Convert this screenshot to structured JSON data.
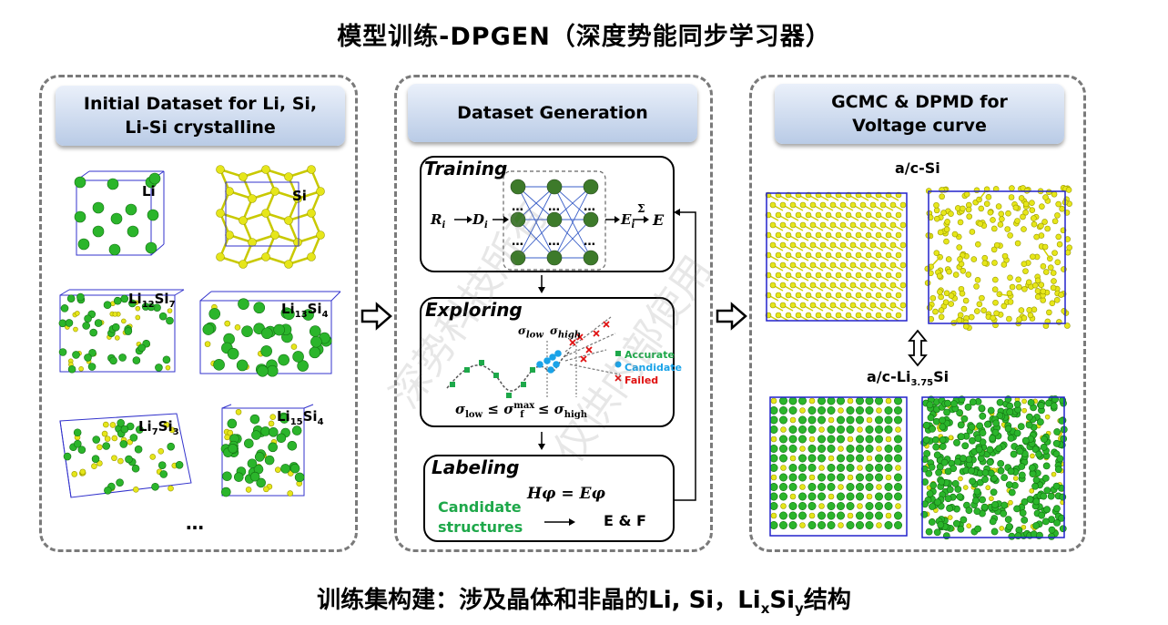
{
  "title": "模型训练-DPGEN（深度势能同步学习器）",
  "bottom_caption": {
    "prefix": "训练集构建：涉及晶体和非晶的Li, Si，Li",
    "sub_x": "x",
    "mid": "Si",
    "sub_y": "y",
    "suffix": "结构"
  },
  "panel1": {
    "header_line1": "Initial Dataset for Li, Si,",
    "header_line2": "Li-Si crystalline",
    "labels": {
      "li": "Li",
      "si": "Si",
      "li12si7": {
        "a": "Li",
        "a_sub": "12",
        "b": "Si",
        "b_sub": "7"
      },
      "li13si4": {
        "a": "Li",
        "a_sub": "13",
        "b": "Si",
        "b_sub": "4"
      },
      "li7si3": {
        "a": "Li",
        "a_sub": "7",
        "b": "Si",
        "b_sub": "3"
      },
      "li15si4": {
        "a": "Li",
        "a_sub": "15",
        "b": "Si",
        "b_sub": "4"
      }
    },
    "ellipsis": "…"
  },
  "panel2": {
    "header": "Dataset Generation",
    "training": {
      "title": "Training",
      "r": "R",
      "r_sub": "i",
      "d": "D",
      "d_sub": "i",
      "e_i": "E",
      "e_i_sub": "i",
      "sum": "Σ",
      "e": "E",
      "dots": "…"
    },
    "exploring": {
      "title": "Exploring",
      "sigma_low": "σ",
      "sigma_low_sub": "low",
      "sigma_high": "σ",
      "sigma_high_sub": "high",
      "formula_parts": {
        "s1": "σ",
        "s1_sub": "low",
        "le1": "≤",
        "s2": "σ",
        "s2_sub": "f",
        "s2_sup": "max",
        "le2": "≤",
        "s3": "σ",
        "s3_sub": "high"
      },
      "legend": {
        "accurate": "Accurate",
        "candidate": "Candidate",
        "failed": "Failed"
      }
    },
    "labeling": {
      "title": "Labeling",
      "equation": "Hφ = Eφ",
      "candidate_line1": "Candidate",
      "candidate_line2": "structures",
      "output": "E & F"
    }
  },
  "panel3": {
    "header_line1": "GCMC & DPMD for",
    "header_line2": "Voltage curve",
    "label_si": "a/c-Si",
    "label_lisi": {
      "a": "a/c-Li",
      "a_sub": "3.75",
      "b": "Si"
    }
  },
  "watermark": {
    "w1": "深势科技所有",
    "w2": "仅供内部使用"
  },
  "colors": {
    "green": "#2bb52b",
    "yellow": "#e6e61a",
    "blue_frame": "#2222cc",
    "accent_green": "#1ea84a",
    "candidate_blue": "#1aa3e8",
    "failed_red": "#e01010",
    "panel_border": "#7a7a7a"
  },
  "icons": {
    "arrow_right": "hollow-arrow-right-icon",
    "arrow_updown": "hollow-arrow-updown-icon"
  }
}
